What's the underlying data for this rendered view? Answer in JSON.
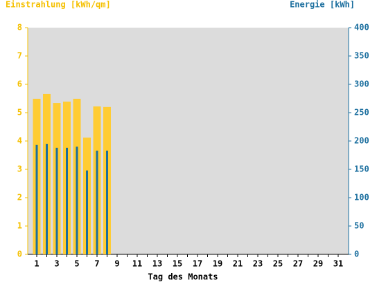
{
  "chart_data": {
    "type": "bar",
    "ylabel": "Einstrahlung [kWh/qm]",
    "y2label": "Energie [kWh]",
    "xlabel": "Tag des Monats",
    "categories": [
      "1",
      null,
      "3",
      null,
      "5",
      null,
      "7",
      null,
      "9",
      null,
      "11",
      null,
      "13",
      null,
      "15",
      null,
      "17",
      null,
      "19",
      null,
      "21",
      null,
      "23",
      null,
      "25",
      null,
      "27",
      null,
      "29",
      null,
      "31"
    ],
    "series": [
      {
        "color": "#ffcc33",
        "axis": "y",
        "values": [
          5.49,
          5.66,
          5.34,
          5.39,
          5.49,
          4.12,
          5.22,
          5.2,
          null,
          null,
          null,
          null,
          null,
          null,
          null,
          null,
          null,
          null,
          null,
          null,
          null,
          null,
          null,
          null,
          null,
          null,
          null,
          null,
          null,
          null,
          null
        ]
      },
      {
        "color": "#1a6e9e",
        "axis": "y2",
        "values": [
          193,
          195,
          188,
          188,
          190,
          148,
          183,
          183,
          null,
          null,
          null,
          null,
          null,
          null,
          null,
          null,
          null,
          null,
          null,
          null,
          null,
          null,
          null,
          null,
          null,
          null,
          null,
          null,
          null,
          null,
          null
        ]
      }
    ],
    "ylim": [
      0,
      8
    ],
    "yticks": [
      0,
      1,
      2,
      3,
      4,
      5,
      6,
      7,
      8
    ],
    "y2lim": [
      0,
      400
    ],
    "y2ticks": [
      0,
      50,
      100,
      150,
      200,
      250,
      300,
      350,
      400
    ],
    "ycolor": "#f5c000",
    "y2color": "#1a6e9e",
    "plot_background": "#dcdcdc"
  }
}
